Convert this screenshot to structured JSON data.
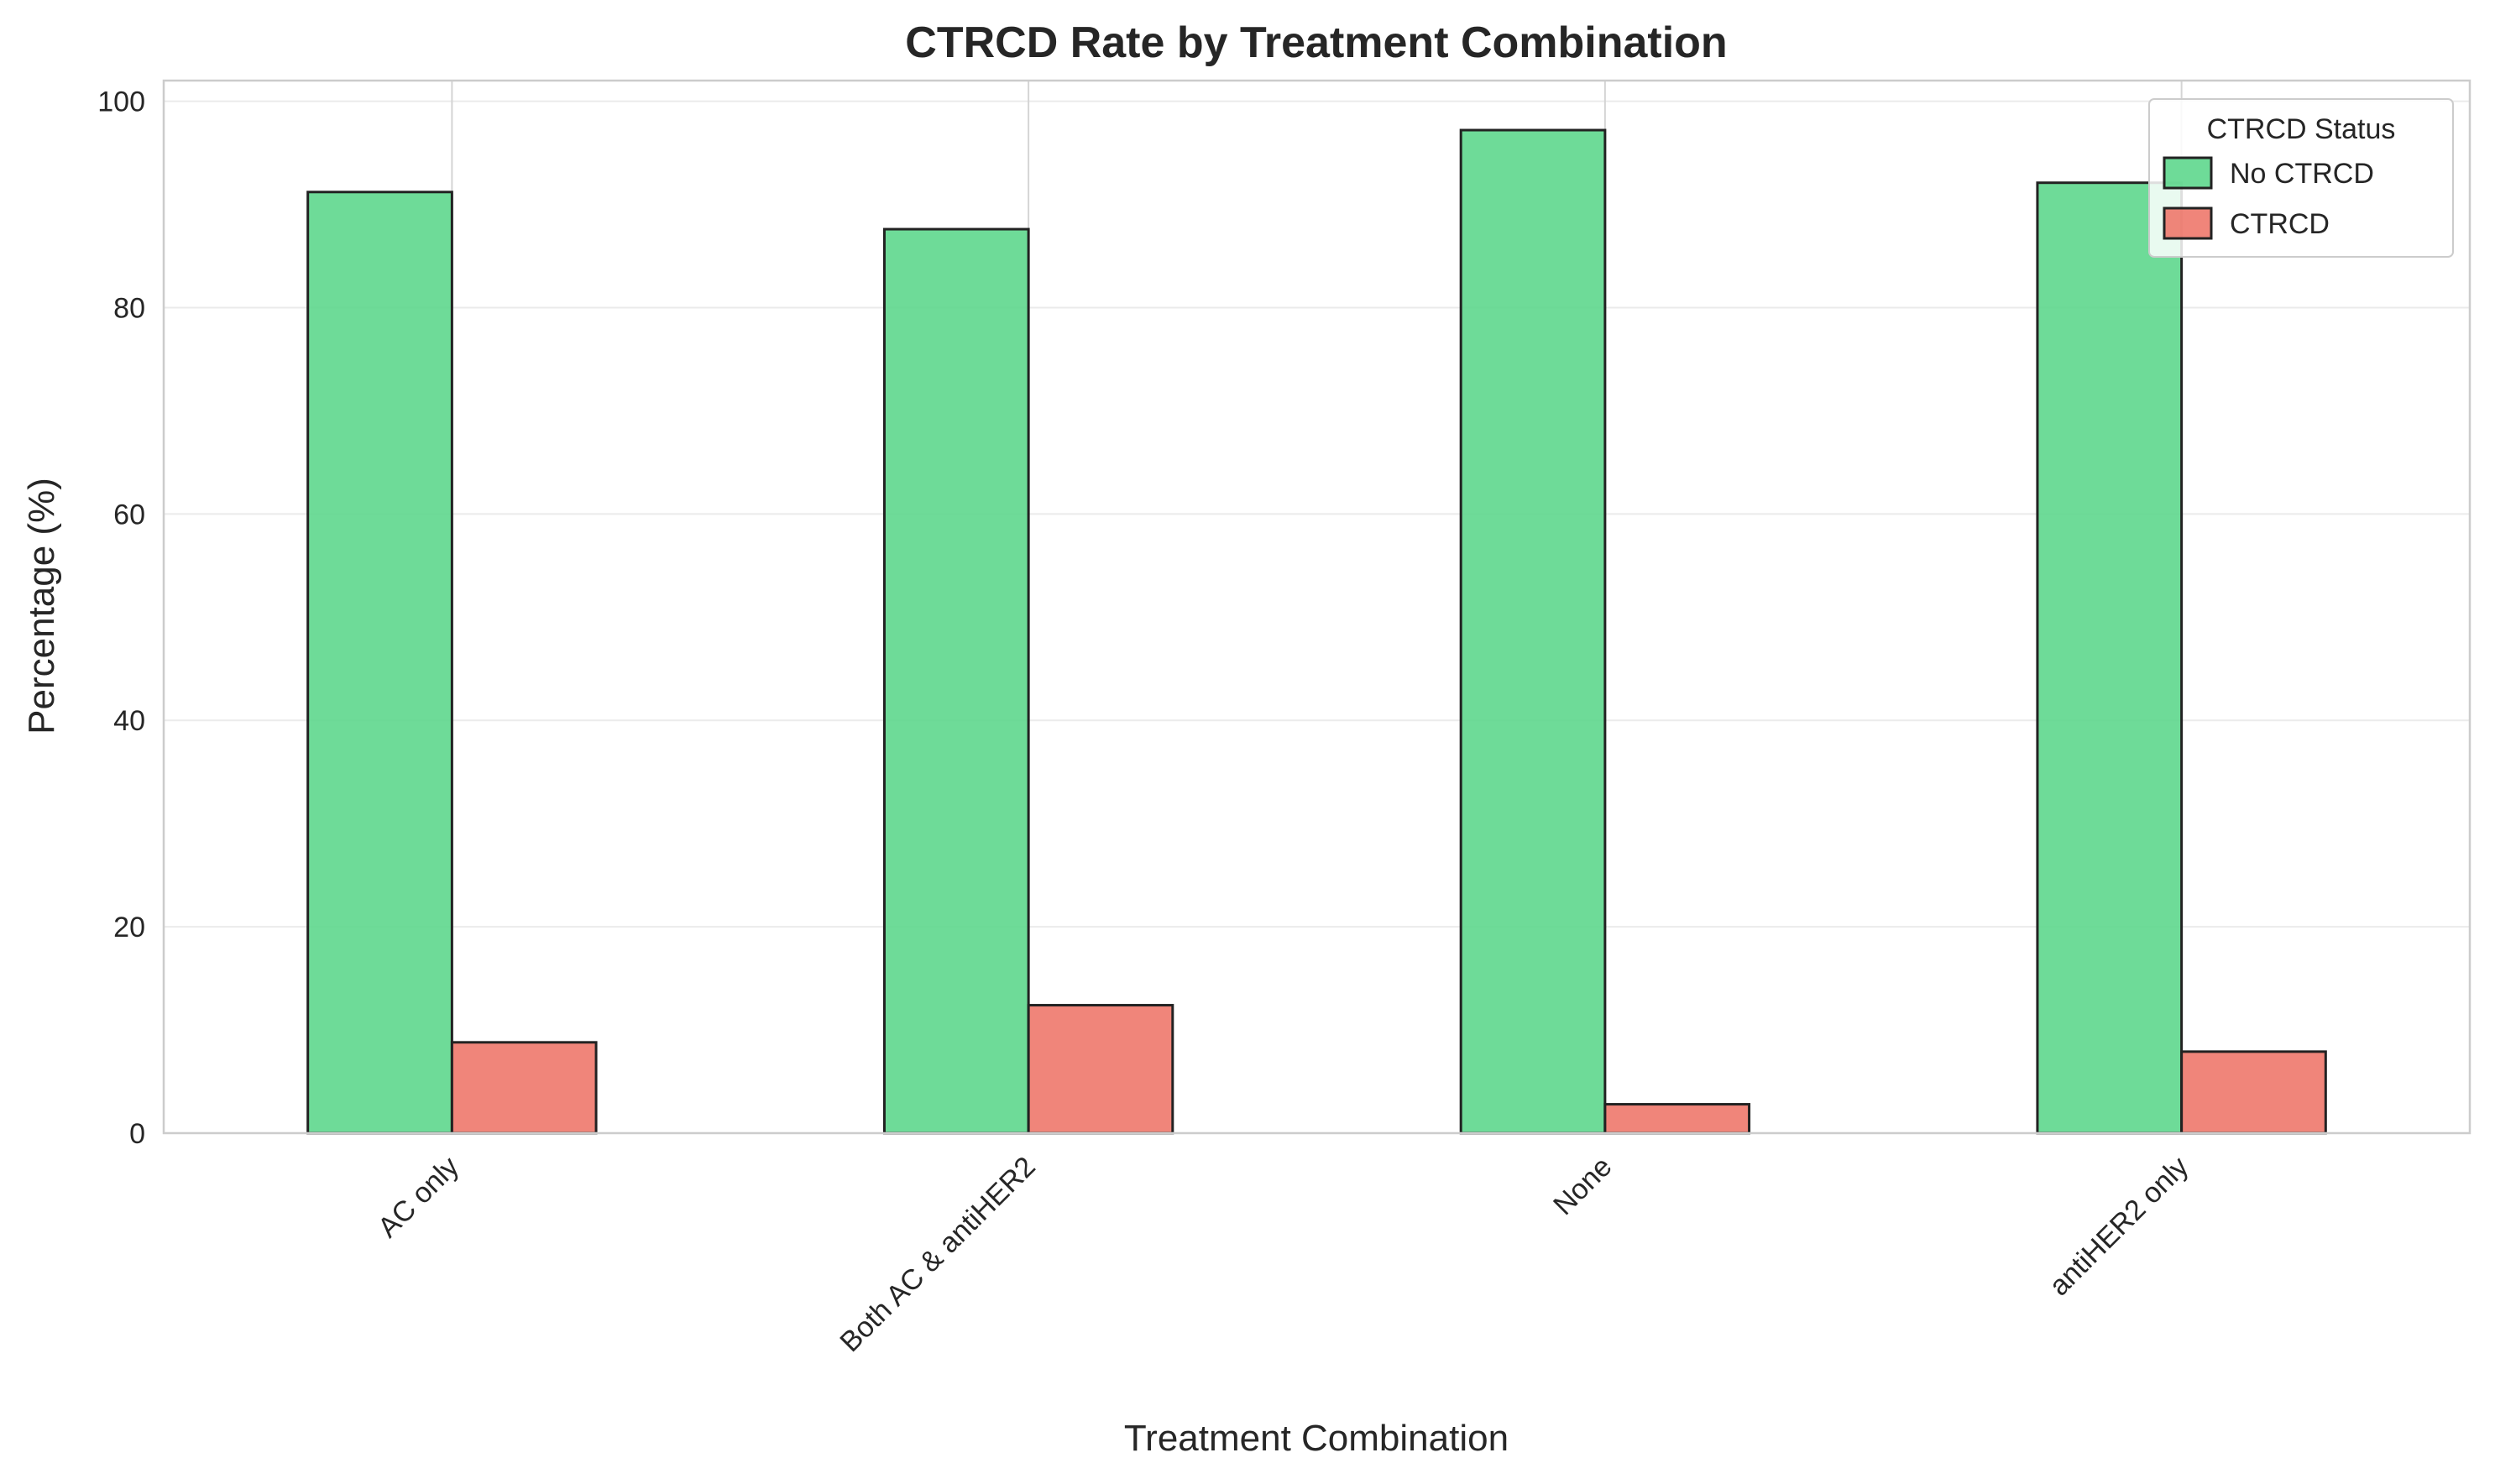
{
  "chart_data": {
    "type": "bar",
    "title": "CTRCD Rate by Treatment Combination",
    "xlabel": "Treatment Combination",
    "ylabel": "Percentage (%)",
    "categories": [
      "AC only",
      "Both AC & antiHER2",
      "None",
      "antiHER2 only"
    ],
    "series": [
      {
        "name": "No CTRCD",
        "values": [
          91.2,
          87.6,
          97.2,
          92.1
        ],
        "color": "#5ad68a"
      },
      {
        "name": "CTRCD",
        "values": [
          8.8,
          12.4,
          2.8,
          7.9
        ],
        "color": "#ee7468"
      }
    ],
    "ylim": [
      0,
      102
    ],
    "yticks": [
      0,
      20,
      40,
      60,
      80,
      100
    ],
    "grid": true,
    "legend": {
      "title": "CTRCD Status",
      "placement": "top-right"
    }
  }
}
